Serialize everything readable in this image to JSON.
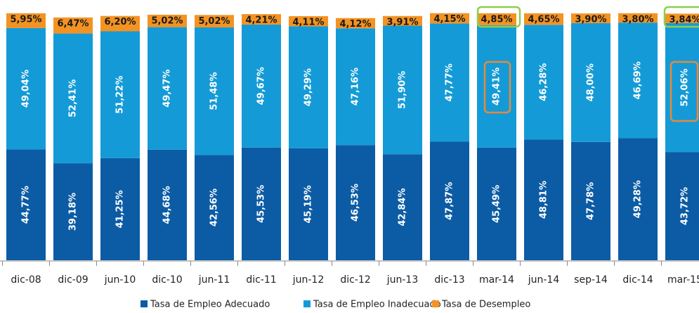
{
  "chart_data": {
    "type": "stacked_bar",
    "categories": [
      "dic-08",
      "dic-09",
      "jun-10",
      "dic-10",
      "jun-11",
      "dic-11",
      "jun-12",
      "dic-12",
      "jun-13",
      "dic-13",
      "mar-14",
      "jun-14",
      "sep-14",
      "dic-14",
      "mar-15"
    ],
    "series": [
      {
        "name": "Tasa de Empleo Adecuado",
        "color": "#0c5ca5",
        "values": [
          44.77,
          39.18,
          41.25,
          44.68,
          42.56,
          45.53,
          45.19,
          46.53,
          42.84,
          47.87,
          45.49,
          48.81,
          47.78,
          49.28,
          43.72
        ],
        "value_labels": [
          "44,77%",
          "39,18%",
          "41,25%",
          "44,68%",
          "42,56%",
          "45,53%",
          "45,19%",
          "46,53%",
          "42,84%",
          "47,87%",
          "45,49%",
          "48,81%",
          "47,78%",
          "49,28%",
          "43,72%"
        ]
      },
      {
        "name": "Tasa de Empleo Inadecuado",
        "color": "#149bd7",
        "values": [
          49.04,
          52.41,
          51.22,
          49.47,
          51.48,
          49.67,
          49.29,
          47.16,
          51.9,
          47.77,
          49.41,
          46.28,
          48.0,
          46.69,
          52.06
        ],
        "value_labels": [
          "49,04%",
          "52,41%",
          "51,22%",
          "49,47%",
          "51,48%",
          "49,67%",
          "49,29%",
          "47,16%",
          "51,90%",
          "47,77%",
          "49,41%",
          "46,28%",
          "48,00%",
          "46,69%",
          "52,06%"
        ]
      },
      {
        "name": "Tasa de Desempleo",
        "color": "#f39323",
        "values": [
          5.95,
          6.47,
          6.2,
          5.02,
          5.02,
          4.21,
          4.11,
          4.12,
          3.91,
          4.15,
          4.85,
          4.65,
          3.9,
          3.8,
          3.84
        ],
        "value_labels": [
          "5,95%",
          "6,47%",
          "6,20%",
          "5,02%",
          "5,02%",
          "4,21%",
          "4,11%",
          "4,12%",
          "3,91%",
          "4,15%",
          "4,85%",
          "4,65%",
          "3,90%",
          "3,80%",
          "3,84%"
        ]
      }
    ]
  }
}
